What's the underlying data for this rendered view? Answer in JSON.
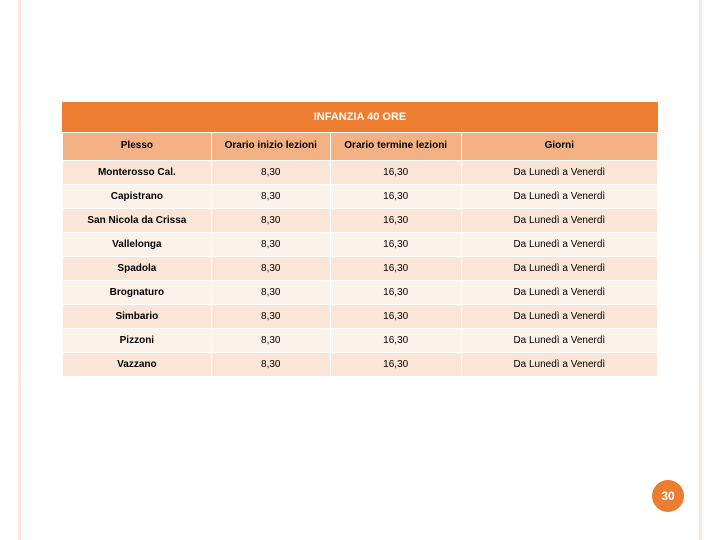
{
  "colors": {
    "accent": "#ed7d31",
    "header_bg": "#f4b183",
    "row_odd": "#fbe5d6",
    "row_even": "#fdf2ea",
    "frame": "#fce4d6",
    "text": "#000000",
    "badge_bg": "#ed7d31",
    "badge_text": "#ffffff"
  },
  "layout": {
    "col_widths_pct": [
      25,
      20,
      22,
      33
    ]
  },
  "title": "INFANZIA 40 ORE",
  "table": {
    "columns": [
      "Plesso",
      "Orario inizio lezioni",
      "Orario termine lezioni",
      "Giorni"
    ],
    "rows": [
      [
        "Monterosso Cal.",
        "8,30",
        "16,30",
        "Da Lunedì a Venerdì"
      ],
      [
        "Capistrano",
        "8,30",
        "16,30",
        "Da Lunedì a Venerdì"
      ],
      [
        "San Nicola da Crissa",
        "8,30",
        "16,30",
        "Da Lunedì a Venerdì"
      ],
      [
        "Vallelonga",
        "8,30",
        "16,30",
        "Da Lunedì a Venerdì"
      ],
      [
        "Spadola",
        "8,30",
        "16,30",
        "Da Lunedì a Venerdì"
      ],
      [
        "Brognaturo",
        "8,30",
        "16,30",
        "Da Lunedì a Venerdì"
      ],
      [
        "Simbario",
        "8,30",
        "16,30",
        "Da Lunedì a Venerdì"
      ],
      [
        "Pizzoni",
        "8,30",
        "16,30",
        "Da Lunedì a Venerdì"
      ],
      [
        "Vazzano",
        "8,30",
        "16,30",
        "Da Lunedì a Venerdì"
      ]
    ]
  },
  "page_number": "30"
}
